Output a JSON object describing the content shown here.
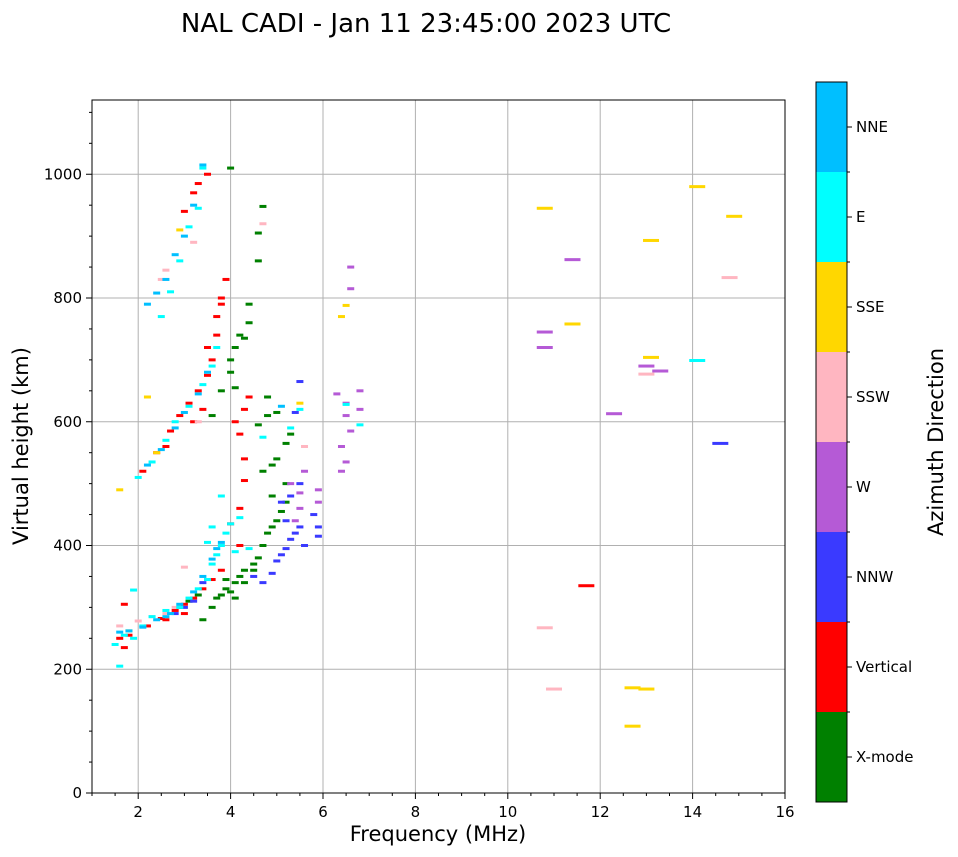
{
  "chart_data": {
    "type": "scatter",
    "title": "NAL CADI - Jan 11 23:45:00 2023 UTC",
    "xlabel": "Frequency (MHz)",
    "ylabel": "Virtual height (km)",
    "xlim": [
      1,
      16
    ],
    "ylim": [
      0,
      1120
    ],
    "xticks": [
      2,
      4,
      6,
      8,
      10,
      12,
      14,
      16
    ],
    "yticks": [
      0,
      200,
      400,
      600,
      800,
      1000
    ],
    "grid": true,
    "colorbar": {
      "label": "Azimuth Direction",
      "categories": [
        {
          "name": "X-mode",
          "color": "#008000"
        },
        {
          "name": "Vertical",
          "color": "#ff0000"
        },
        {
          "name": "NNW",
          "color": "#3a3aff"
        },
        {
          "name": "W",
          "color": "#b55ad6"
        },
        {
          "name": "SSW",
          "color": "#ffb6c1"
        },
        {
          "name": "SSE",
          "color": "#ffd700"
        },
        {
          "name": "E",
          "color": "#00ffff"
        },
        {
          "name": "NNE",
          "color": "#00bfff"
        }
      ]
    },
    "series": [
      {
        "name": "X-mode",
        "points": [
          [
            3.4,
            280
          ],
          [
            3.6,
            300
          ],
          [
            3.7,
            315
          ],
          [
            3.8,
            320
          ],
          [
            3.9,
            330
          ],
          [
            4.0,
            325
          ],
          [
            4.1,
            340
          ],
          [
            4.2,
            350
          ],
          [
            4.3,
            360
          ],
          [
            4.5,
            370
          ],
          [
            4.6,
            380
          ],
          [
            4.7,
            400
          ],
          [
            4.8,
            420
          ],
          [
            4.9,
            430
          ],
          [
            5.0,
            440
          ],
          [
            5.1,
            455
          ],
          [
            5.2,
            470
          ],
          [
            4.7,
            520
          ],
          [
            4.9,
            530
          ],
          [
            5.0,
            540
          ],
          [
            5.2,
            565
          ],
          [
            4.6,
            595
          ],
          [
            4.8,
            610
          ],
          [
            4.3,
            340
          ],
          [
            4.1,
            655
          ],
          [
            4.0,
            680
          ],
          [
            4.0,
            700
          ],
          [
            4.1,
            720
          ],
          [
            4.2,
            740
          ],
          [
            4.4,
            760
          ],
          [
            4.4,
            790
          ],
          [
            4.3,
            735
          ],
          [
            4.6,
            905
          ],
          [
            4.7,
            948
          ],
          [
            4.6,
            860
          ],
          [
            4.0,
            1010
          ],
          [
            3.6,
            610
          ],
          [
            3.8,
            650
          ],
          [
            4.8,
            640
          ],
          [
            5.0,
            615
          ],
          [
            5.3,
            580
          ],
          [
            2.9,
            300
          ],
          [
            3.1,
            310
          ],
          [
            3.3,
            320
          ],
          [
            4.5,
            360
          ],
          [
            4.9,
            480
          ],
          [
            5.2,
            500
          ],
          [
            4.1,
            315
          ],
          [
            3.9,
            345
          ]
        ]
      },
      {
        "name": "Vertical",
        "points": [
          [
            1.6,
            250
          ],
          [
            1.8,
            255
          ],
          [
            2.2,
            270
          ],
          [
            2.5,
            282
          ],
          [
            2.8,
            295
          ],
          [
            3.0,
            305
          ],
          [
            3.2,
            315
          ],
          [
            3.4,
            330
          ],
          [
            3.6,
            345
          ],
          [
            3.8,
            360
          ],
          [
            4.0,
            435
          ],
          [
            4.2,
            400
          ],
          [
            4.2,
            460
          ],
          [
            4.3,
            540
          ],
          [
            4.2,
            580
          ],
          [
            4.3,
            620
          ],
          [
            4.4,
            640
          ],
          [
            2.1,
            520
          ],
          [
            2.4,
            550
          ],
          [
            2.7,
            585
          ],
          [
            2.9,
            610
          ],
          [
            3.1,
            630
          ],
          [
            3.3,
            650
          ],
          [
            3.5,
            675
          ],
          [
            3.6,
            700
          ],
          [
            3.7,
            740
          ],
          [
            3.7,
            770
          ],
          [
            3.8,
            800
          ],
          [
            3.9,
            830
          ],
          [
            3.0,
            940
          ],
          [
            3.2,
            970
          ],
          [
            3.3,
            985
          ],
          [
            3.5,
            1000
          ],
          [
            11.7,
            335
          ],
          [
            1.7,
            305
          ],
          [
            1.7,
            235
          ],
          [
            2.6,
            560
          ],
          [
            3.5,
            720
          ],
          [
            3.8,
            790
          ],
          [
            4.1,
            600
          ],
          [
            4.3,
            505
          ],
          [
            3.2,
            600
          ],
          [
            3.4,
            620
          ],
          [
            3.0,
            290
          ],
          [
            2.6,
            280
          ]
        ]
      },
      {
        "name": "NNW",
        "points": [
          [
            4.7,
            340
          ],
          [
            4.9,
            355
          ],
          [
            5.0,
            375
          ],
          [
            5.1,
            385
          ],
          [
            5.2,
            395
          ],
          [
            5.3,
            410
          ],
          [
            5.4,
            420
          ],
          [
            5.5,
            430
          ],
          [
            5.1,
            470
          ],
          [
            5.3,
            480
          ],
          [
            5.5,
            500
          ],
          [
            5.8,
            450
          ],
          [
            5.9,
            430
          ],
          [
            5.9,
            415
          ],
          [
            5.4,
            615
          ],
          [
            5.5,
            665
          ],
          [
            14.6,
            565
          ],
          [
            3.0,
            300
          ],
          [
            3.2,
            310
          ],
          [
            4.5,
            350
          ],
          [
            5.2,
            440
          ],
          [
            5.6,
            400
          ],
          [
            2.8,
            290
          ],
          [
            3.4,
            340
          ]
        ]
      },
      {
        "name": "W",
        "points": [
          [
            5.3,
            500
          ],
          [
            5.5,
            485
          ],
          [
            5.5,
            460
          ],
          [
            5.9,
            470
          ],
          [
            5.9,
            490
          ],
          [
            6.4,
            520
          ],
          [
            6.5,
            535
          ],
          [
            6.4,
            560
          ],
          [
            6.6,
            585
          ],
          [
            6.8,
            620
          ],
          [
            6.8,
            650
          ],
          [
            6.6,
            815
          ],
          [
            6.6,
            850
          ],
          [
            10.8,
            720
          ],
          [
            10.8,
            745
          ],
          [
            11.4,
            862
          ],
          [
            12.3,
            613
          ],
          [
            13.0,
            690
          ],
          [
            13.3,
            682
          ],
          [
            6.5,
            630
          ],
          [
            6.3,
            645
          ],
          [
            5.4,
            440
          ],
          [
            5.6,
            520
          ],
          [
            6.5,
            610
          ]
        ]
      },
      {
        "name": "SSW",
        "points": [
          [
            2.3,
            285
          ],
          [
            2.6,
            290
          ],
          [
            2.8,
            300
          ],
          [
            3.0,
            365
          ],
          [
            10.8,
            267
          ],
          [
            11.0,
            168
          ],
          [
            14.8,
            833
          ],
          [
            13.0,
            677
          ],
          [
            2.5,
            830
          ],
          [
            2.6,
            845
          ],
          [
            3.2,
            890
          ],
          [
            1.6,
            270
          ],
          [
            2.0,
            278
          ],
          [
            4.7,
            920
          ],
          [
            3.3,
            600
          ],
          [
            5.6,
            560
          ]
        ]
      },
      {
        "name": "SSE",
        "points": [
          [
            1.6,
            490
          ],
          [
            2.4,
            550
          ],
          [
            2.9,
            910
          ],
          [
            5.5,
            630
          ],
          [
            6.4,
            770
          ],
          [
            6.5,
            788
          ],
          [
            10.8,
            945
          ],
          [
            11.4,
            758
          ],
          [
            12.7,
            170
          ],
          [
            13.0,
            168
          ],
          [
            12.7,
            108
          ],
          [
            13.1,
            704
          ],
          [
            13.1,
            893
          ],
          [
            14.1,
            980
          ],
          [
            14.9,
            932
          ],
          [
            1.8,
            262
          ],
          [
            2.2,
            640
          ]
        ]
      },
      {
        "name": "E",
        "points": [
          [
            1.5,
            240
          ],
          [
            1.7,
            255
          ],
          [
            1.9,
            250
          ],
          [
            2.1,
            270
          ],
          [
            2.3,
            285
          ],
          [
            2.6,
            295
          ],
          [
            2.9,
            300
          ],
          [
            3.1,
            315
          ],
          [
            3.3,
            330
          ],
          [
            3.5,
            345
          ],
          [
            3.6,
            370
          ],
          [
            3.7,
            385
          ],
          [
            3.8,
            400
          ],
          [
            3.9,
            420
          ],
          [
            4.0,
            435
          ],
          [
            4.2,
            445
          ],
          [
            3.8,
            480
          ],
          [
            4.1,
            390
          ],
          [
            4.4,
            395
          ],
          [
            3.5,
            405
          ],
          [
            3.6,
            430
          ],
          [
            2.0,
            510
          ],
          [
            2.3,
            535
          ],
          [
            2.6,
            570
          ],
          [
            2.8,
            600
          ],
          [
            3.1,
            625
          ],
          [
            3.4,
            660
          ],
          [
            3.6,
            690
          ],
          [
            3.7,
            720
          ],
          [
            2.5,
            770
          ],
          [
            2.7,
            810
          ],
          [
            2.9,
            860
          ],
          [
            3.1,
            915
          ],
          [
            3.3,
            945
          ],
          [
            3.4,
            1010
          ],
          [
            5.3,
            590
          ],
          [
            5.5,
            620
          ],
          [
            6.5,
            628
          ],
          [
            6.8,
            595
          ],
          [
            14.1,
            699
          ],
          [
            1.9,
            328
          ],
          [
            1.6,
            205
          ],
          [
            4.7,
            575
          ]
        ]
      },
      {
        "name": "NNE",
        "points": [
          [
            1.6,
            260
          ],
          [
            1.8,
            262
          ],
          [
            2.1,
            268
          ],
          [
            2.4,
            280
          ],
          [
            2.7,
            290
          ],
          [
            2.9,
            305
          ],
          [
            3.2,
            325
          ],
          [
            3.4,
            350
          ],
          [
            3.6,
            378
          ],
          [
            3.8,
            405
          ],
          [
            2.2,
            530
          ],
          [
            2.5,
            555
          ],
          [
            2.8,
            590
          ],
          [
            3.0,
            615
          ],
          [
            3.3,
            645
          ],
          [
            3.5,
            680
          ],
          [
            2.2,
            790
          ],
          [
            2.4,
            808
          ],
          [
            2.6,
            830
          ],
          [
            2.8,
            870
          ],
          [
            3.0,
            900
          ],
          [
            3.2,
            950
          ],
          [
            3.4,
            1015
          ],
          [
            5.1,
            625
          ],
          [
            2.6,
            285
          ],
          [
            3.7,
            395
          ]
        ]
      }
    ]
  }
}
